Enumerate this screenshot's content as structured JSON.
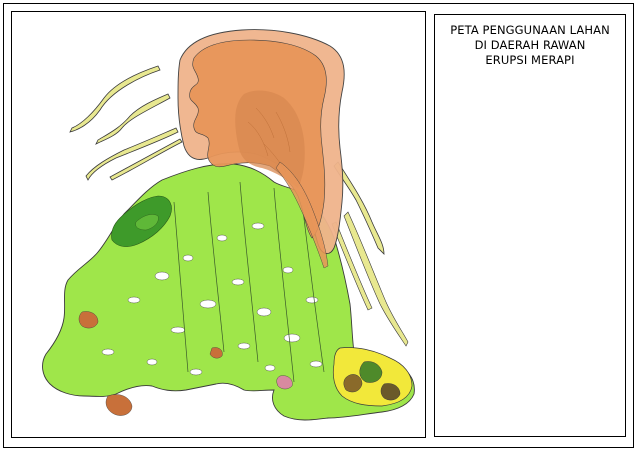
{
  "legend": {
    "title_lines": [
      "PETA PENGGUNAAN LAHAN",
      "DI DAERAH RAWAN",
      "ERUPSI MERAPI"
    ]
  },
  "colors": {
    "hazard_outer": "#F0B48C",
    "hazard_inner": "#E8965A",
    "hazard_core": "#D88850",
    "vegetation": "#9FE64A",
    "forest": "#3E9A2A",
    "settlement": "#F2E83A",
    "lava_channel": "#E8E890",
    "bare_soil": "#C8703A",
    "outline": "#3A3A3A"
  }
}
